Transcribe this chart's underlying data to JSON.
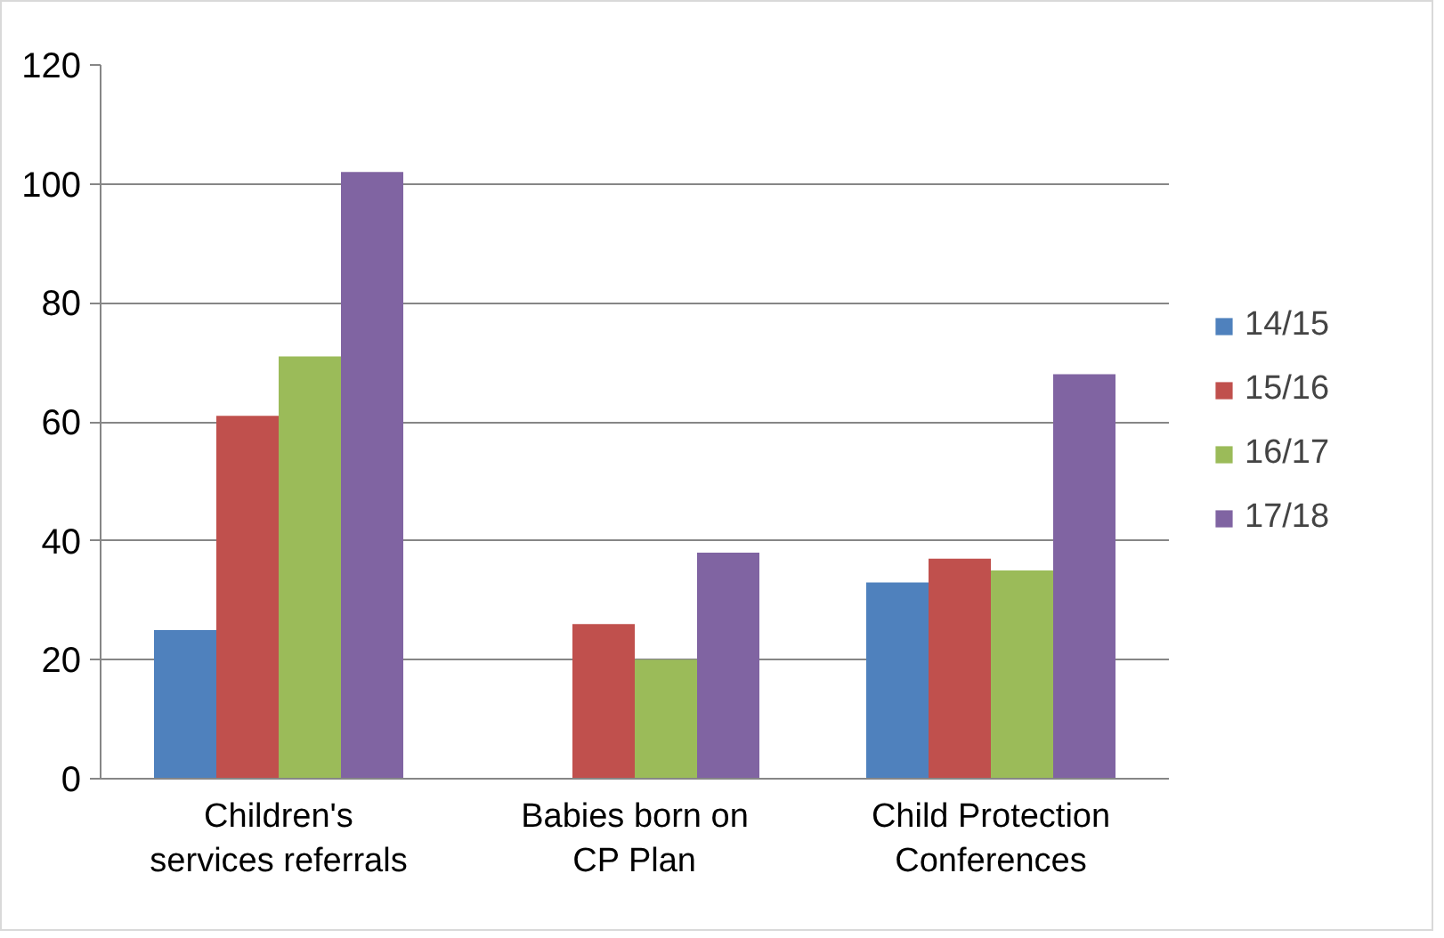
{
  "chart_data": {
    "type": "bar",
    "categories": [
      "Children's services referrals",
      "Babies born on CP Plan",
      "Child Protection Conferences"
    ],
    "series": [
      {
        "name": "14/15",
        "color": "#4f81bd",
        "values": [
          25,
          null,
          33
        ]
      },
      {
        "name": "15/16",
        "color": "#c0504d",
        "values": [
          61,
          26,
          37
        ]
      },
      {
        "name": "16/17",
        "color": "#9bbb59",
        "values": [
          71,
          20,
          35
        ]
      },
      {
        "name": "17/18",
        "color": "#8064a2",
        "values": [
          102,
          38,
          68
        ]
      }
    ],
    "ylim": [
      0,
      120
    ],
    "yticks": [
      0,
      20,
      40,
      60,
      80,
      100,
      120
    ],
    "grid": "y",
    "legend": "right"
  }
}
